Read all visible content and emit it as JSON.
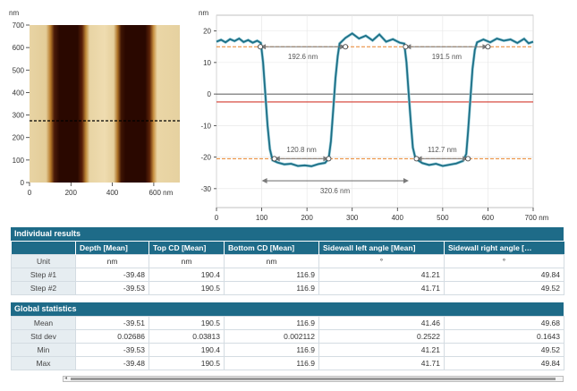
{
  "afm_image": {
    "y_unit": "nm",
    "y_ticks": [
      "700",
      "600",
      "500",
      "400",
      "300",
      "200",
      "100",
      "0"
    ],
    "x_ticks": [
      "0",
      "200",
      "400",
      "600 nm"
    ]
  },
  "profile": {
    "y_unit": "nm",
    "y_ticks": [
      "20",
      "10",
      "0",
      "-10",
      "-20",
      "-30"
    ],
    "x_ticks": [
      "0",
      "100",
      "200",
      "300",
      "400",
      "500",
      "600",
      "700 nm"
    ],
    "measurements": [
      "192.6 nm",
      "191.5 nm",
      "120.8 nm",
      "112.7 nm",
      "320.6 nm"
    ],
    "colors": {
      "profile": "#1c6f86",
      "level_guides": "#e8822a",
      "reference": "#d43a2f"
    }
  },
  "individual": {
    "title": "Individual results",
    "columns": [
      "",
      "Depth [Mean]",
      "Top CD [Mean]",
      "Bottom CD [Mean]",
      "Sidewall left angle [Mean]",
      "Sidewall right angle […"
    ],
    "unit_row": [
      "Unit",
      "nm",
      "nm",
      "nm",
      "°",
      "°"
    ],
    "rows": [
      [
        "Step #1",
        "-39.48",
        "190.4",
        "116.9",
        "41.21",
        "49.84"
      ],
      [
        "Step #2",
        "-39.53",
        "190.5",
        "116.9",
        "41.71",
        "49.52"
      ]
    ]
  },
  "global": {
    "title": "Global statistics",
    "rows": [
      [
        "Mean",
        "-39.51",
        "190.5",
        "116.9",
        "41.46",
        "49.68"
      ],
      [
        "Std dev",
        "0.02686",
        "0.03813",
        "0.002112",
        "0.2522",
        "0.1643"
      ],
      [
        "Min",
        "-39.53",
        "190.4",
        "116.9",
        "41.21",
        "49.52"
      ],
      [
        "Max",
        "-39.48",
        "190.5",
        "116.9",
        "41.71",
        "49.84"
      ]
    ]
  },
  "scroll_left_glyph": "◂"
}
